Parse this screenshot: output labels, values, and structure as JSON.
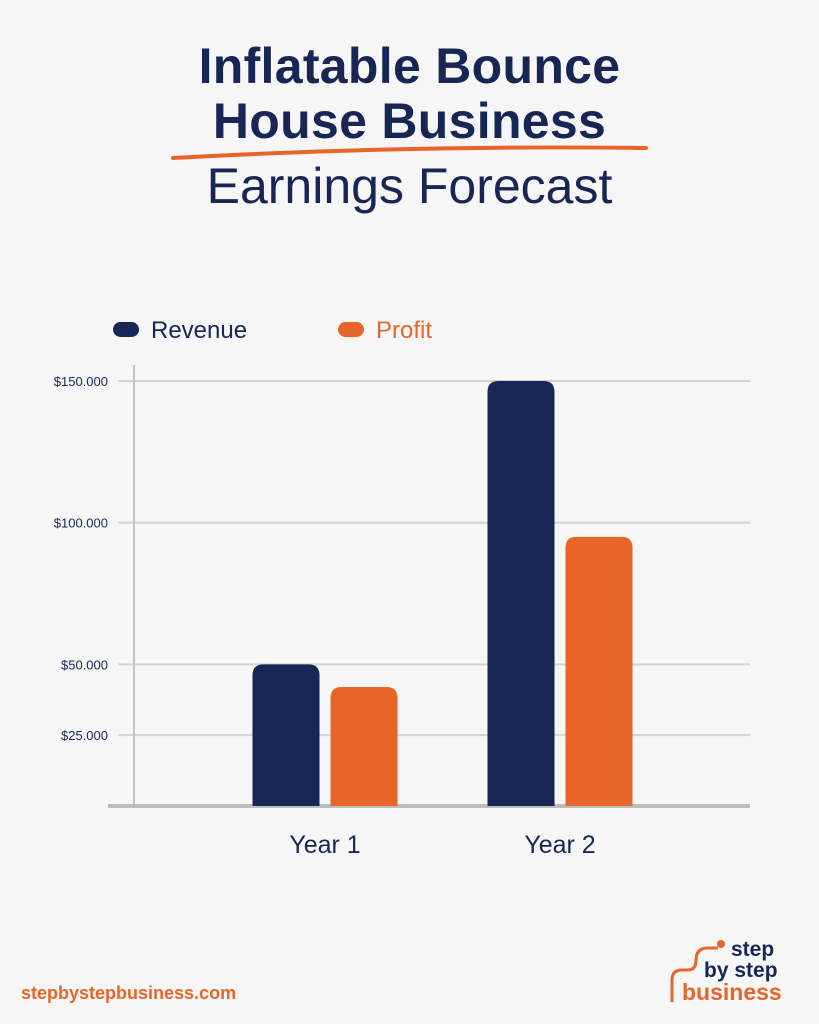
{
  "title": {
    "line1": "Inflatable Bounce",
    "line2": "House Business",
    "line3": "Earnings Forecast"
  },
  "colors": {
    "navy": "#172654",
    "orange": "#e8652a",
    "grid": "#d3d3d3",
    "axis": "#c2c2c2",
    "background": "#f6f6f6"
  },
  "chart_data": {
    "type": "bar",
    "categories": [
      "Year 1",
      "Year 2"
    ],
    "series": [
      {
        "name": "Revenue",
        "color": "#172654",
        "values": [
          50000,
          150000
        ]
      },
      {
        "name": "Profit",
        "color": "#e8652a",
        "values": [
          42000,
          95000
        ]
      }
    ],
    "yticks": [
      {
        "value": 25000,
        "label": "$25.000"
      },
      {
        "value": 50000,
        "label": "$50.000"
      },
      {
        "value": 100000,
        "label": "$100.000"
      },
      {
        "value": 150000,
        "label": "$150.000"
      }
    ],
    "ylim": [
      0,
      150000
    ],
    "grid": true,
    "legend_position": "top-left"
  },
  "footer": {
    "url": "stepbystepbusiness.com",
    "logo_line1": "step",
    "logo_line2": "by step",
    "logo_line3": "business"
  }
}
